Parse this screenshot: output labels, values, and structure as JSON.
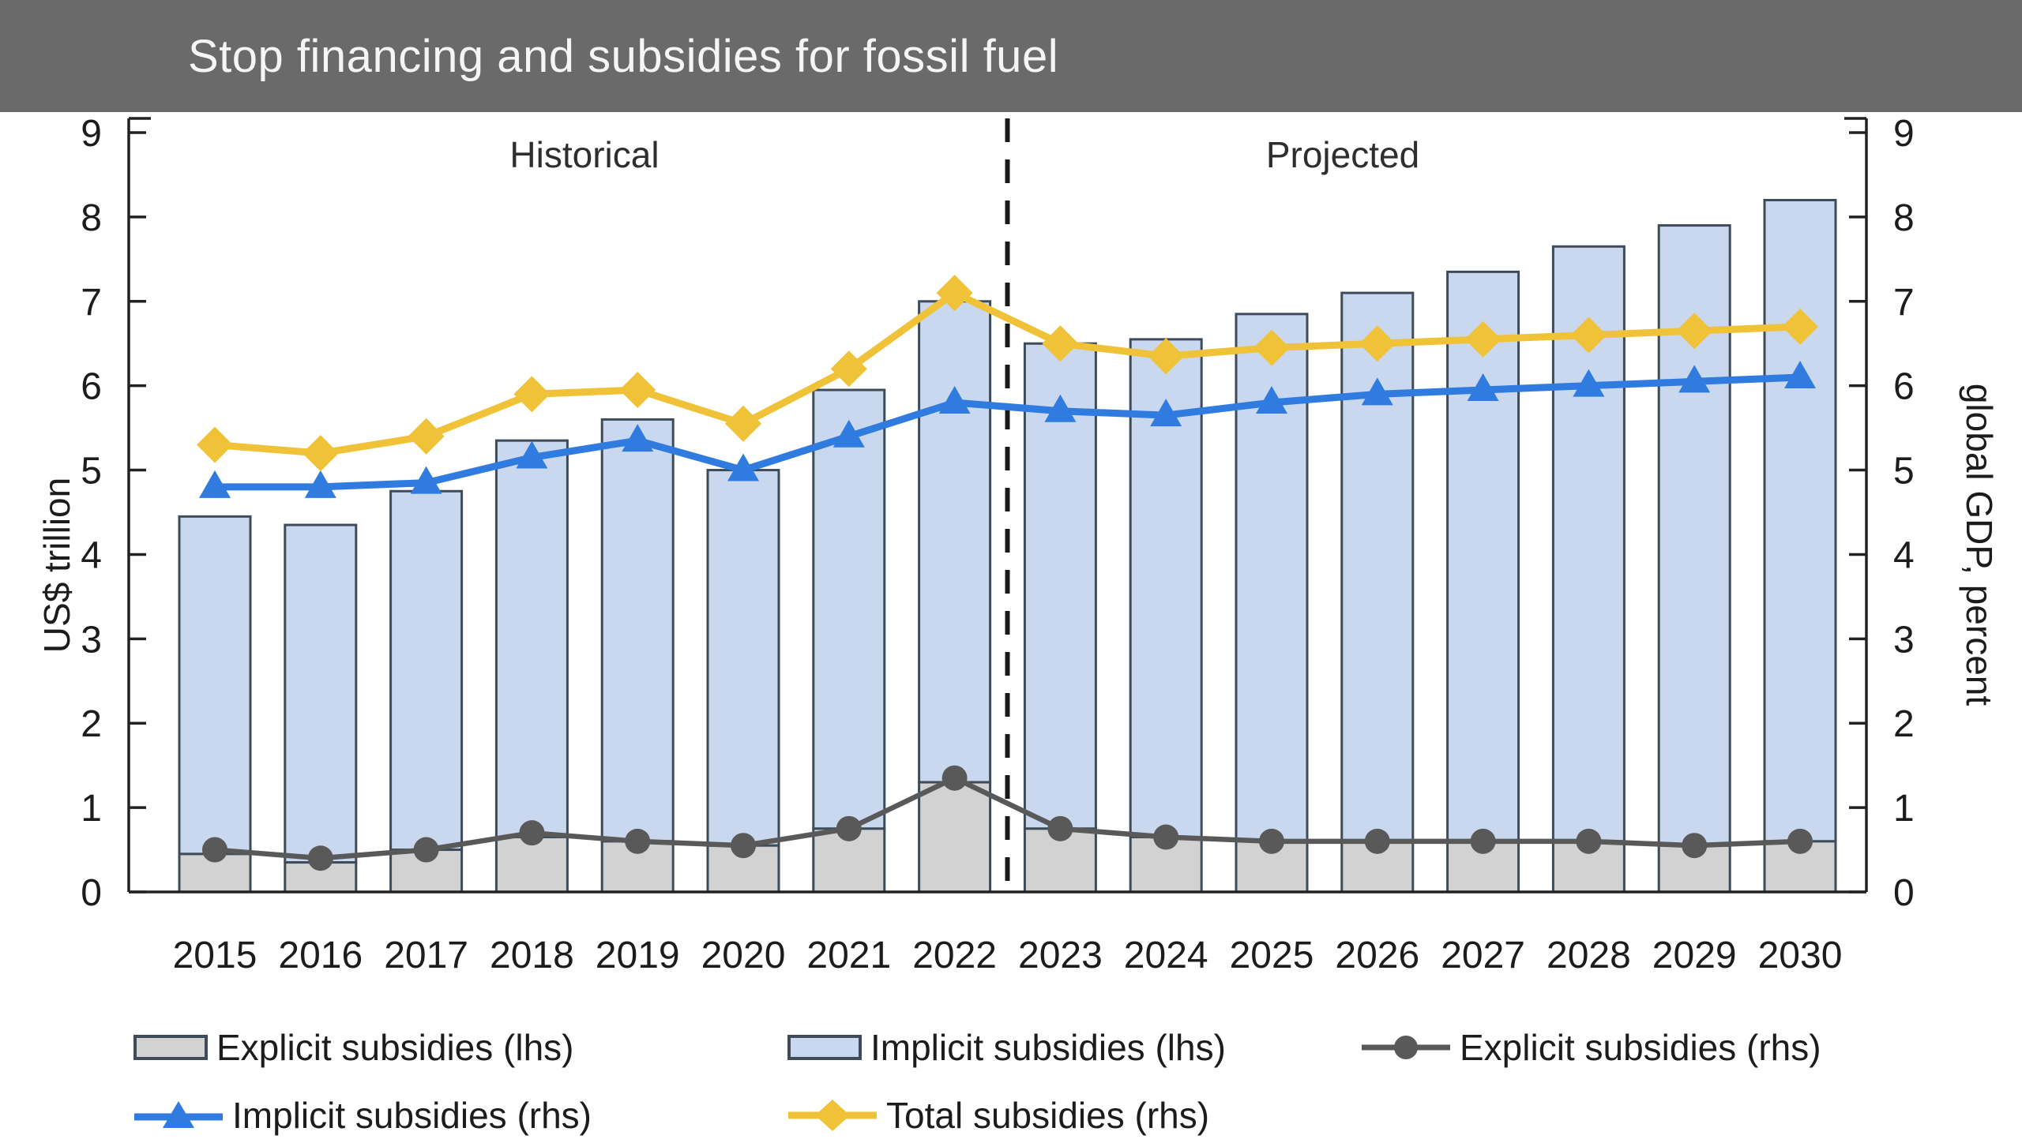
{
  "header": {
    "title": "Stop financing and subsidies for fossil fuel"
  },
  "chart_data": {
    "type": "combo-bar-line",
    "title": "Stop financing and subsidies for fossil fuel",
    "annotations": [
      "Historical",
      "Projected"
    ],
    "divider_between_years": [
      2022,
      2023
    ],
    "years": [
      2015,
      2016,
      2017,
      2018,
      2019,
      2020,
      2021,
      2022,
      2023,
      2024,
      2025,
      2026,
      2027,
      2028,
      2029,
      2030
    ],
    "ylabel_left": "US$ trillion",
    "ylabel_right": "global GDP, percent",
    "ylim": [
      0,
      9
    ],
    "ytick_step": 1,
    "bar_series": [
      {
        "name": "Explicit subsidies (lhs)",
        "axis": "left",
        "stack": "base",
        "color": "#d2d2d2",
        "values": [
          0.45,
          0.35,
          0.5,
          0.65,
          0.6,
          0.55,
          0.75,
          1.3,
          0.75,
          0.65,
          0.6,
          0.6,
          0.6,
          0.6,
          0.55,
          0.6
        ]
      },
      {
        "name": "Implicit subsidies (lhs)",
        "axis": "left",
        "stack": "top",
        "color": "#c9d8ef",
        "values": [
          4.0,
          4.0,
          4.25,
          4.7,
          5.0,
          4.45,
          5.2,
          5.7,
          5.75,
          5.9,
          6.25,
          6.5,
          6.75,
          7.05,
          7.35,
          7.6
        ]
      }
    ],
    "line_series": [
      {
        "name": "Explicit subsidies (rhs)",
        "axis": "right",
        "marker": "circle",
        "color": "#595959",
        "values": [
          0.5,
          0.4,
          0.5,
          0.7,
          0.6,
          0.55,
          0.75,
          1.35,
          0.75,
          0.65,
          0.6,
          0.6,
          0.6,
          0.6,
          0.55,
          0.6
        ]
      },
      {
        "name": "Implicit subsidies (rhs)",
        "axis": "right",
        "marker": "triangle",
        "color": "#2f7be0",
        "values": [
          4.8,
          4.8,
          4.85,
          5.15,
          5.35,
          5.0,
          5.4,
          5.8,
          5.7,
          5.65,
          5.8,
          5.9,
          5.95,
          6.0,
          6.05,
          6.1
        ]
      },
      {
        "name": "Total subsidies (rhs)",
        "axis": "right",
        "marker": "diamond",
        "color": "#f0c237",
        "values": [
          5.3,
          5.2,
          5.4,
          5.9,
          5.95,
          5.55,
          6.2,
          7.1,
          6.5,
          6.35,
          6.45,
          6.5,
          6.55,
          6.6,
          6.65,
          6.7
        ]
      }
    ],
    "legend": {
      "rows": [
        [
          {
            "label": "Explicit subsidies (lhs)",
            "swatch": "bar-gray"
          },
          {
            "label": "Implicit subsidies (lhs)",
            "swatch": "bar-blue"
          },
          {
            "label": "Explicit subsidies (rhs)",
            "swatch": "line-circle-gray"
          }
        ],
        [
          {
            "label": "Implicit subsidies (rhs)",
            "swatch": "line-triangle-blue"
          },
          {
            "label": "Total subsidies (rhs)",
            "swatch": "line-diamond-yellow"
          }
        ]
      ]
    },
    "colors": {
      "header_bg": "#6a6a6a",
      "header_text": "#f5f5f5",
      "bar_explicit_fill": "#d2d2d2",
      "bar_implicit_fill": "#c9d8ef",
      "bar_border": "#3e4c59",
      "line_explicit": "#595959",
      "line_implicit": "#2f7be0",
      "line_total": "#f0c237",
      "divider": "#1a1a1a",
      "axis": "#222222",
      "text": "#1c1c1c"
    }
  }
}
